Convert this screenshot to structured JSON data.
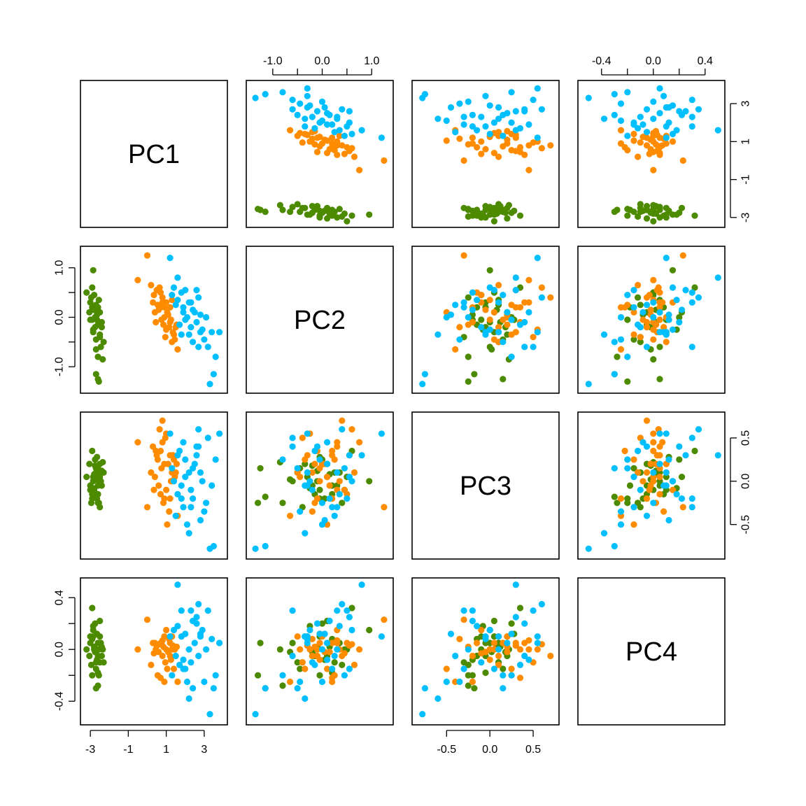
{
  "chart_data": {
    "type": "scatter-matrix",
    "variables": [
      "PC1",
      "PC2",
      "PC3",
      "PC4"
    ],
    "group_colors": [
      "#4c8a00",
      "#ff8c00",
      "#00bfff"
    ],
    "ranges": [
      [
        -3.3,
        4.0
      ],
      [
        -1.45,
        1.35
      ],
      [
        -0.85,
        0.75
      ],
      [
        -0.55,
        0.52
      ]
    ],
    "ticks": {
      "PC1": {
        "values": [
          -3,
          -1,
          1,
          3
        ],
        "labels": [
          "-3",
          "-1",
          "1",
          "3"
        ]
      },
      "PC2": {
        "values": [
          -1.0,
          -0.5,
          0.0,
          0.5,
          1.0
        ],
        "labels": [
          "-1.0",
          "",
          "0.0",
          "",
          "1.0"
        ]
      },
      "PC3": {
        "values": [
          -0.5,
          0.0,
          0.5
        ],
        "labels": [
          "-0.5",
          "0.0",
          "0.5"
        ]
      },
      "PC4": {
        "values": [
          -0.4,
          -0.2,
          0.0,
          0.2,
          0.4
        ],
        "labels": [
          "-0.4",
          "",
          "0.0",
          "",
          "0.4"
        ]
      }
    },
    "groups": [
      {
        "points": [
          [
            -3.2,
            0.5,
            0.05,
            0.0
          ],
          [
            -3.0,
            0.3,
            -0.05,
            0.05
          ],
          [
            -3.05,
            0.1,
            0.2,
            -0.05
          ],
          [
            -2.9,
            0.6,
            0.35,
            0.32
          ],
          [
            -2.85,
            0.95,
            0.0,
            0.15
          ],
          [
            -2.8,
            0.45,
            -0.1,
            0.0
          ],
          [
            -2.7,
            0.25,
            0.1,
            -0.1
          ],
          [
            -2.75,
            0.0,
            0.25,
            0.2
          ],
          [
            -2.9,
            -0.05,
            -0.2,
            -0.2
          ],
          [
            -2.85,
            -0.3,
            0.05,
            0.1
          ],
          [
            -2.6,
            -0.15,
            -0.15,
            -0.05
          ],
          [
            -2.7,
            -0.45,
            0.15,
            -0.15
          ],
          [
            -2.55,
            -0.1,
            0.0,
            0.0
          ],
          [
            -2.5,
            -0.35,
            0.2,
            0.1
          ],
          [
            -2.6,
            -0.8,
            -0.25,
            -0.28
          ],
          [
            -2.4,
            -0.2,
            -0.05,
            -0.05
          ],
          [
            -2.45,
            -0.6,
            0.0,
            0.05
          ],
          [
            -2.3,
            -0.5,
            0.1,
            -0.1
          ],
          [
            -2.35,
            -0.85,
            0.22,
            0.0
          ],
          [
            -2.7,
            -1.15,
            -0.18,
            -0.3
          ],
          [
            -2.6,
            -1.25,
            0.15,
            0.05
          ],
          [
            -2.55,
            -1.3,
            -0.25,
            -0.2
          ],
          [
            -3.0,
            -0.05,
            -0.1,
            0.1
          ],
          [
            -2.8,
            0.15,
            0.08,
            0.02
          ],
          [
            -2.65,
            0.05,
            -0.2,
            -0.08
          ],
          [
            -2.5,
            0.1,
            0.05,
            0.22
          ],
          [
            -2.9,
            0.2,
            -0.15,
            0.08
          ],
          [
            -2.75,
            -0.2,
            0.18,
            -0.02
          ],
          [
            -2.65,
            -0.05,
            0.28,
            0.12
          ],
          [
            -2.95,
            0.4,
            -0.25,
            -0.12
          ],
          [
            -2.4,
            -0.1,
            0.12,
            0.02
          ],
          [
            -2.6,
            0.2,
            -0.05,
            -0.18
          ],
          [
            -2.7,
            -0.65,
            0.02,
            -0.02
          ],
          [
            -2.85,
            -0.25,
            -0.08,
            0.18
          ],
          [
            -2.5,
            -0.4,
            -0.3,
            -0.1
          ],
          [
            -2.55,
            0.35,
            0.1,
            0.05
          ]
        ]
      },
      {
        "points": [
          [
            0.0,
            1.25,
            -0.3,
            0.23
          ],
          [
            -0.5,
            0.75,
            0.45,
            0.0
          ],
          [
            0.2,
            0.65,
            0.1,
            -0.12
          ],
          [
            0.5,
            0.55,
            0.3,
            0.03
          ],
          [
            0.8,
            0.4,
            0.7,
            -0.05
          ],
          [
            1.0,
            0.3,
            -0.1,
            0.15
          ],
          [
            0.7,
            0.2,
            0.35,
            -0.22
          ],
          [
            0.4,
            0.1,
            0.05,
            0.05
          ],
          [
            0.9,
            0.0,
            0.2,
            0.1
          ],
          [
            1.2,
            -0.1,
            -0.2,
            -0.05
          ],
          [
            1.0,
            -0.25,
            0.55,
            0.0
          ],
          [
            1.4,
            -0.35,
            0.25,
            -0.15
          ],
          [
            1.3,
            -0.5,
            0.1,
            0.1
          ],
          [
            1.6,
            -0.65,
            -0.4,
            -0.25
          ],
          [
            0.3,
            0.3,
            0.4,
            0.05
          ],
          [
            0.6,
            0.15,
            -0.05,
            -0.02
          ],
          [
            1.1,
            0.05,
            0.2,
            -0.02
          ],
          [
            0.85,
            -0.15,
            -0.25,
            0.02
          ],
          [
            1.2,
            0.2,
            0.3,
            0.05
          ],
          [
            1.5,
            -0.2,
            0.1,
            -0.05
          ],
          [
            0.7,
            0.5,
            -0.15,
            0.05
          ],
          [
            1.3,
            0.35,
            0.0,
            0.0
          ],
          [
            0.95,
            -0.4,
            0.5,
            -0.1
          ],
          [
            1.15,
            -0.2,
            -0.35,
            0.08
          ],
          [
            0.55,
            0.25,
            0.25,
            -0.2
          ],
          [
            1.45,
            -0.45,
            0.05,
            0.0
          ],
          [
            0.75,
            -0.05,
            0.15,
            0.05
          ],
          [
            1.05,
            0.1,
            -0.5,
            -0.15
          ],
          [
            1.35,
            -0.3,
            0.3,
            0.03
          ],
          [
            0.35,
            0.45,
            -0.1,
            -0.03
          ],
          [
            0.65,
            0.6,
            0.6,
            0.04
          ],
          [
            1.25,
            -0.05,
            0.0,
            -0.08
          ],
          [
            0.45,
            -0.1,
            0.35,
            0.0
          ],
          [
            0.9,
            0.2,
            -0.2,
            -0.25
          ],
          [
            1.55,
            -0.15,
            0.2,
            0.02
          ],
          [
            0.8,
            0.3,
            0.45,
            0.07
          ]
        ]
      },
      {
        "points": [
          [
            1.2,
            1.2,
            0.55,
            0.1
          ],
          [
            1.6,
            0.8,
            0.3,
            0.5
          ],
          [
            1.4,
            0.6,
            0.0,
            0.15
          ],
          [
            1.8,
            0.5,
            -0.2,
            0.3
          ],
          [
            2.2,
            0.3,
            0.1,
            0.0
          ],
          [
            1.9,
            0.2,
            -0.3,
            -0.15
          ],
          [
            2.5,
            0.1,
            0.2,
            0.05
          ],
          [
            2.1,
            0.0,
            -0.5,
            -0.25
          ],
          [
            2.6,
            -0.1,
            0.4,
            0.2
          ],
          [
            2.3,
            -0.2,
            -0.1,
            -0.1
          ],
          [
            2.8,
            -0.3,
            0.1,
            0.1
          ],
          [
            3.0,
            -0.45,
            -0.35,
            -0.25
          ],
          [
            3.2,
            -0.6,
            0.5,
            0.3
          ],
          [
            3.8,
            -0.3,
            0.55,
            0.05
          ],
          [
            3.5,
            -1.15,
            -0.75,
            -0.3
          ],
          [
            3.3,
            -1.35,
            -0.78,
            -0.5
          ],
          [
            2.7,
            0.4,
            0.6,
            0.35
          ],
          [
            1.5,
            0.25,
            -0.4,
            -0.05
          ],
          [
            2.0,
            -0.05,
            0.25,
            0.12
          ],
          [
            2.4,
            0.15,
            -0.2,
            0.22
          ],
          [
            1.7,
            -0.15,
            0.35,
            -0.12
          ],
          [
            2.9,
            -0.25,
            0.0,
            0.15
          ],
          [
            3.1,
            0.0,
            -0.25,
            0.0
          ],
          [
            1.3,
            0.45,
            0.15,
            -0.2
          ],
          [
            2.2,
            -0.35,
            -0.6,
            -0.38
          ],
          [
            2.6,
            0.55,
            0.3,
            0.25
          ],
          [
            1.9,
            0.1,
            0.45,
            -0.08
          ],
          [
            3.4,
            -0.3,
            -0.05,
            0.08
          ],
          [
            2.4,
            -0.5,
            0.15,
            -0.3
          ],
          [
            1.6,
            0.35,
            -0.15,
            0.18
          ],
          [
            2.8,
            0.05,
            -0.45,
            0.12
          ],
          [
            2.0,
            0.55,
            0.05,
            -0.15
          ],
          [
            3.6,
            -0.8,
            0.25,
            -0.2
          ],
          [
            2.3,
            0.3,
            -0.3,
            0.3
          ],
          [
            2.7,
            -0.6,
            0.4,
            -0.05
          ],
          [
            1.8,
            -0.35,
            -0.05,
            0.1
          ]
        ]
      }
    ]
  }
}
